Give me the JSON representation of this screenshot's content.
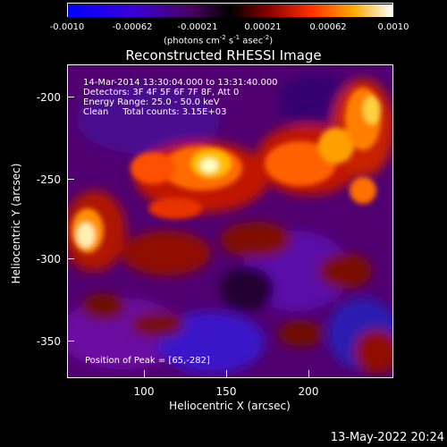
{
  "colorbar": {
    "ticks": [
      "-0.0010",
      "-0.00062",
      "-0.00021",
      "0.00021",
      "0.00062",
      "0.0010"
    ],
    "units_prefix": "(photons cm",
    "units_exp1": "-2",
    "units_mid1": " s",
    "units_exp2": "-1",
    "units_mid2": " asec",
    "units_exp3": "-2",
    "units_suffix": ")"
  },
  "title": "Reconstructed RHESSI Image",
  "info": {
    "time_range": "14-Mar-2014 13:30:04.000 to 13:31:40.000",
    "detectors": "Detectors: 3F 4F 5F 6F 7F 8F, Att 0",
    "energy": "Energy Range: 25.0 - 50.0 keV",
    "clean": "Clean     Total counts: 3.15E+03",
    "peak": "Position of Peak = [65,-282]"
  },
  "axes": {
    "xlabel": "Heliocentric X (arcsec)",
    "ylabel": "Heliocentric Y (arcsec)",
    "xticks": [
      "100",
      "150",
      "200"
    ],
    "yticks": [
      "-200",
      "-250",
      "-300",
      "-350"
    ],
    "xrange": [
      55,
      245
    ],
    "yrange": [
      -372,
      -183
    ]
  },
  "footer": "13-May-2022 20:24"
}
